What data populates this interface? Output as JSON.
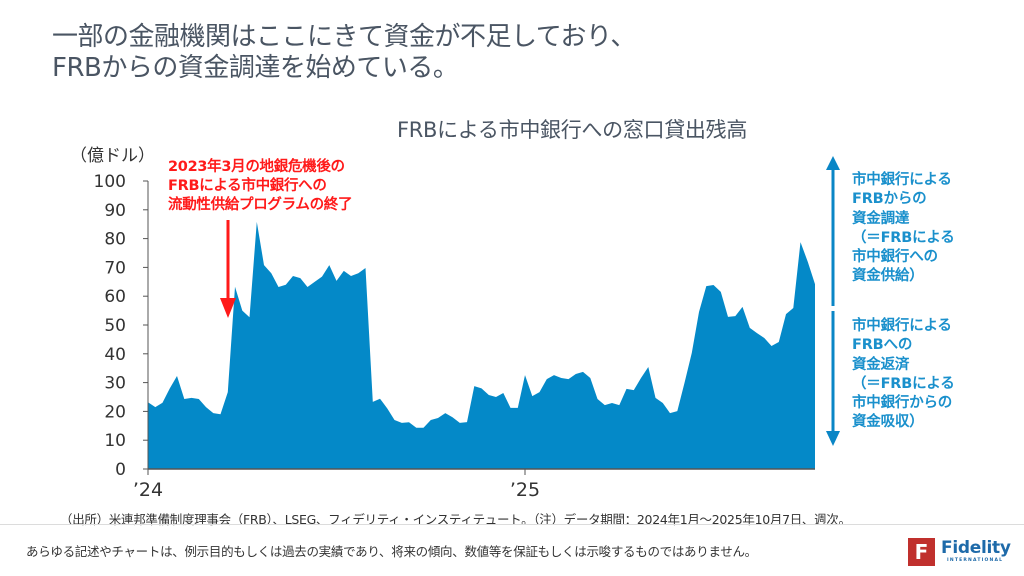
{
  "headline": {
    "line1": "一部の金融機関はここにきて資金が不足しており、",
    "line2": "FRBからの資金調達を始めている。"
  },
  "chart": {
    "title": "FRBによる市中銀行への窓口貸出残高",
    "unit_label": "（億ドル）",
    "annotation_red": {
      "line1": "2023年3月の地銀危機後の",
      "line2": "FRBによる市中銀行への",
      "line3": "流動性供給プログラムの終了"
    },
    "side_up": {
      "line1": "市中銀行による",
      "line2": "FRBからの",
      "line3": "資金調達",
      "line4": "（＝FRBによる",
      "line5": "市中銀行への",
      "line6": "資金供給）"
    },
    "side_down": {
      "line1": "市中銀行による",
      "line2": "FRBへの",
      "line3": "資金返済",
      "line4": "（＝FRBによる",
      "line5": "市中銀行からの",
      "line6": "資金吸収）"
    },
    "colors": {
      "area": "#0489c8",
      "red_annotation": "#ff1a1a",
      "side_text": "#1a90cc",
      "axis": "#555555"
    }
  },
  "chart_data": {
    "type": "area",
    "title": "FRBによる市中銀行への窓口貸出残高",
    "xlabel": "",
    "ylabel": "（億ドル）",
    "ylim": [
      0,
      100
    ],
    "yticks": [
      0,
      10,
      20,
      30,
      40,
      50,
      60,
      70,
      80,
      90,
      100
    ],
    "xticks": [
      {
        "label": "’24",
        "week": 0
      },
      {
        "label": "’25",
        "week": 52
      }
    ],
    "frequency": "weekly",
    "period": "2024年1月〜2025年10月7日",
    "grid": false,
    "series": [
      {
        "name": "窓口貸出残高",
        "values": [
          23.2,
          21.5,
          23.0,
          28.0,
          32.3,
          24.3,
          24.7,
          24.3,
          21.5,
          19.4,
          19.0,
          26.7,
          63.3,
          55.0,
          52.7,
          85.8,
          70.8,
          68.0,
          63.2,
          64.0,
          67.0,
          66.3,
          63.2,
          65.0,
          66.8,
          70.8,
          65.3,
          68.8,
          67.0,
          68.0,
          69.8,
          23.3,
          24.4,
          21.0,
          17.0,
          16.0,
          16.2,
          14.3,
          14.3,
          17.0,
          17.7,
          19.4,
          18.0,
          16.0,
          16.3,
          28.8,
          28.0,
          25.7,
          25.0,
          26.4,
          21.2,
          21.2,
          32.6,
          25.3,
          26.7,
          31.2,
          32.6,
          31.6,
          31.2,
          33.0,
          33.7,
          31.6,
          24.3,
          22.2,
          22.9,
          22.2,
          27.8,
          27.4,
          31.6,
          35.4,
          24.7,
          22.9,
          19.4,
          20.1,
          29.9,
          40.3,
          54.5,
          63.5,
          63.9,
          61.5,
          52.8,
          53.1,
          56.3,
          49.0,
          47.2,
          45.5,
          42.7,
          44.1,
          53.8,
          55.9,
          78.8,
          71.9,
          64.2
        ]
      }
    ],
    "annotations": [
      {
        "text": "2023年3月の地銀危機後のFRBによる市中銀行への流動性供給プログラムの終了",
        "week": 11,
        "type": "arrow-down",
        "color": "#ff1a1a"
      }
    ]
  },
  "footer": {
    "source": "（出所）米連邦準備制度理事会（FRB）、LSEG、フィデリティ・インスティテュート。（注）データ期間：2024年1月〜2025年10月7日、週次。",
    "disclaimer": "あらゆる記述やチャートは、例示目的もしくは過去の実績であり、将来の傾向、数値等を保証もしくは示唆するものではありません。",
    "logo": {
      "mark": "F",
      "word": "Fidelity",
      "sub": "INTERNATIONAL",
      "mark_color": "#c0302d",
      "word_color": "#1e6aa9"
    }
  }
}
